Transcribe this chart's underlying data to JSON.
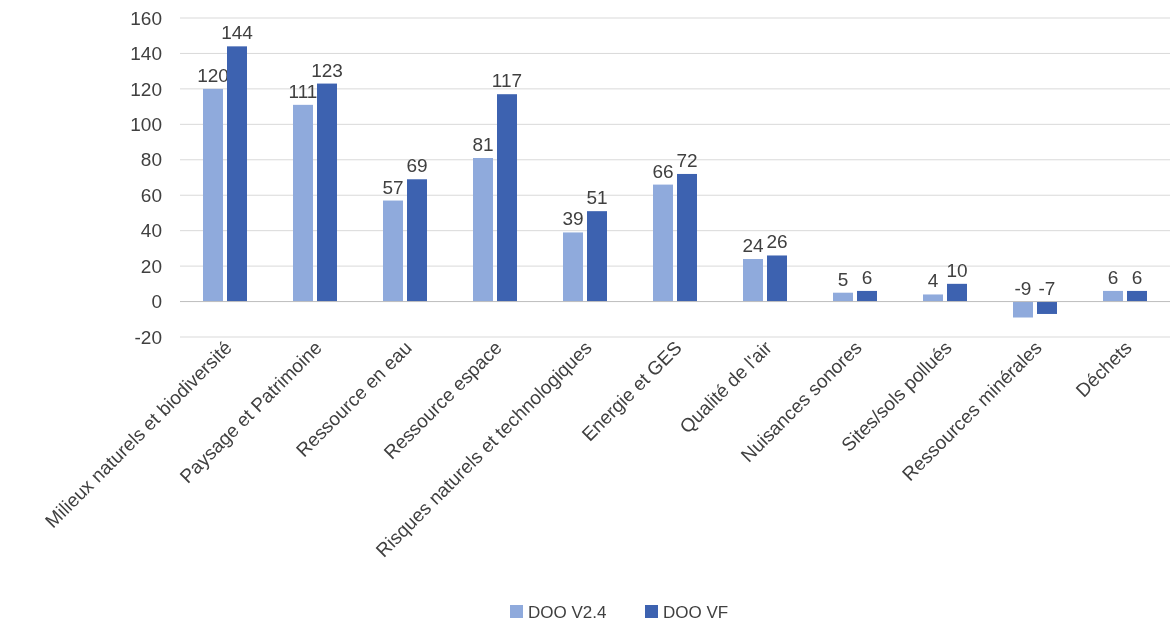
{
  "chart_data": {
    "type": "bar",
    "categories": [
      "Milieux naturels et biodiversité",
      "Paysage et Patrimoine",
      "Ressource en eau",
      "Ressource espace",
      "Risques naturels et technologiques",
      "Energie et GES",
      "Qualité de l'air",
      "Nuisances sonores",
      "Sites/sols pollués",
      "Ressources minérales",
      "Déchets"
    ],
    "series": [
      {
        "name": "DOO V2.4",
        "color": "#8faadc",
        "values": [
          120,
          111,
          57,
          81,
          39,
          66,
          24,
          5,
          4,
          -9,
          6
        ]
      },
      {
        "name": "DOO VF",
        "color": "#3d62b0",
        "values": [
          144,
          123,
          69,
          117,
          51,
          72,
          26,
          6,
          10,
          -7,
          6
        ]
      }
    ],
    "ylim": [
      -20,
      160
    ],
    "yticks": [
      -20,
      0,
      20,
      40,
      60,
      80,
      100,
      120,
      140,
      160
    ],
    "grid": "y",
    "legend": "bottom",
    "data_labels": true
  }
}
